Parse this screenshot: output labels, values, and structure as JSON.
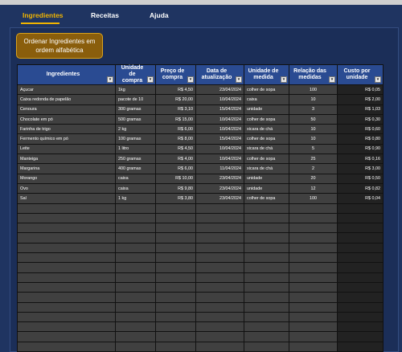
{
  "nav": {
    "items": [
      "Ingredientes",
      "Receitas",
      "Ajuda"
    ]
  },
  "sort_button": {
    "label_line1": "Ordenar Ingredientes em",
    "label_line2": "ordem alfabética"
  },
  "table": {
    "headers": [
      {
        "line1": "Ingredientes",
        "line2": ""
      },
      {
        "line1": "Unidade de",
        "line2": "compra"
      },
      {
        "line1": "Preço de",
        "line2": "compra"
      },
      {
        "line1": "Data de",
        "line2": "atualização"
      },
      {
        "line1": "Unidade de",
        "line2": "medida"
      },
      {
        "line1": "Relação das",
        "line2": "medidas"
      },
      {
        "line1": "Custo por",
        "line2": "unidade"
      }
    ],
    "rows": [
      [
        "Açucar",
        "1kg",
        "R$ 4,50",
        "23/04/2024",
        "colher de sopa",
        "100",
        "R$ 0,05"
      ],
      [
        "Caixa redonda de papelão",
        "pacote de 10",
        "R$ 20,00",
        "10/04/2024",
        "caixa",
        "10",
        "R$ 2,00"
      ],
      [
        "Cenoura",
        "300 gramas",
        "R$ 3,10",
        "15/04/2024",
        "unidade",
        "3",
        "R$ 1,03"
      ],
      [
        "Chocolate em pó",
        "500 gramas",
        "R$ 15,00",
        "10/04/2024",
        "colher de sopa",
        "50",
        "R$ 0,30"
      ],
      [
        "Farinha de trigo",
        "2 kg",
        "R$ 6,00",
        "10/04/2024",
        "xicara de chá",
        "10",
        "R$ 0,60"
      ],
      [
        "Fermento químico em pó",
        "100 gramas",
        "R$ 8,00",
        "15/04/2024",
        "colher de sopa",
        "10",
        "R$ 0,80"
      ],
      [
        "Leite",
        "1 litro",
        "R$ 4,50",
        "10/04/2024",
        "xicara de chá",
        "5",
        "R$ 0,90"
      ],
      [
        "Manteiga",
        "250 gramas",
        "R$ 4,00",
        "10/04/2024",
        "colher de sopa",
        "25",
        "R$ 0,16"
      ],
      [
        "Margarina",
        "400 gramas",
        "R$ 6,00",
        "11/04/2024",
        "xicara de chá",
        "2",
        "R$ 3,00"
      ],
      [
        "Morango",
        "caixa",
        "R$ 10,00",
        "23/04/2024",
        "unidade",
        "20",
        "R$ 0,50"
      ],
      [
        "Ovo",
        "caixa",
        "R$ 9,80",
        "23/04/2024",
        "unidade",
        "12",
        "R$ 0,82"
      ],
      [
        "Sal",
        "1 kg",
        "R$ 3,80",
        "23/04/2024",
        "colher de sopa",
        "100",
        "R$ 0,04"
      ]
    ],
    "filter_glyph": "▾"
  },
  "colors": {
    "background": "#1f3461",
    "header": "#2a4b92",
    "cell": "#404040",
    "accent": "#f0b400",
    "button": "#8a5e0c"
  }
}
